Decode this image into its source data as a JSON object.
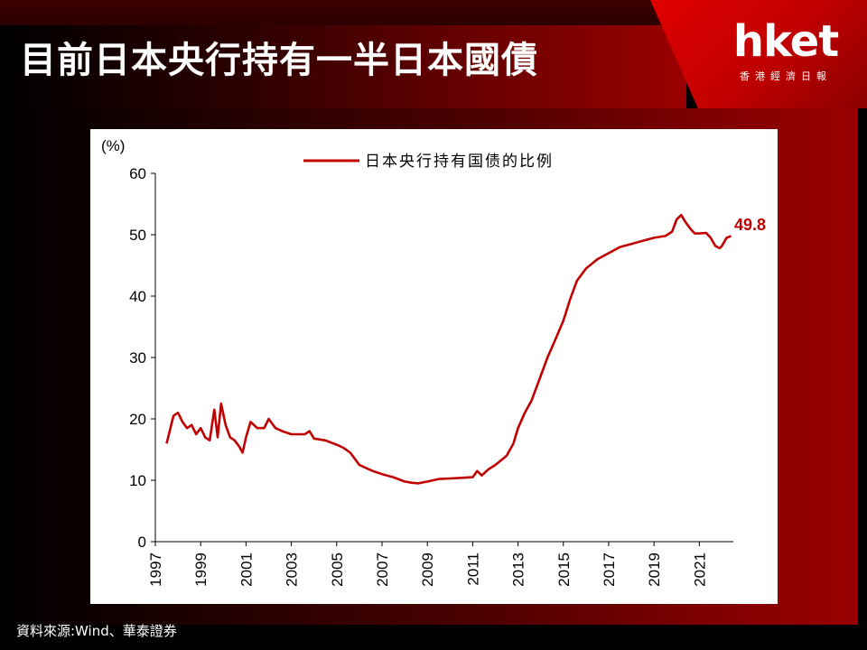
{
  "slide": {
    "title": "目前日本央行持有一半日本國債",
    "logo": "hket",
    "logo_sub": "香港經濟日報",
    "source": "資料來源:Wind、華泰證券"
  },
  "colors": {
    "series": "#c00000",
    "accent": "#e00000",
    "title_text": "#ffffff"
  },
  "chart_data": {
    "type": "line",
    "ylabel": "(%)",
    "ylim": [
      0,
      60
    ],
    "yticks": [
      "0",
      "10",
      "20",
      "30",
      "40",
      "50",
      "60"
    ],
    "xlim": [
      1997,
      2022.5
    ],
    "xticks": [
      "1997",
      "1999",
      "2001",
      "2003",
      "2005",
      "2007",
      "2009",
      "2011",
      "2013",
      "2015",
      "2017",
      "2019",
      "2021"
    ],
    "grid": false,
    "legend": "top-center",
    "end_label": "49.8",
    "series": [
      {
        "name": "日本央行持有国债的比例",
        "points": [
          [
            1997.5,
            16
          ],
          [
            1997.8,
            20.5
          ],
          [
            1998.0,
            21
          ],
          [
            1998.2,
            19.5
          ],
          [
            1998.4,
            18.5
          ],
          [
            1998.6,
            19
          ],
          [
            1998.8,
            17.5
          ],
          [
            1999.0,
            18.5
          ],
          [
            1999.2,
            17
          ],
          [
            1999.4,
            16.5
          ],
          [
            1999.6,
            21.5
          ],
          [
            1999.75,
            17
          ],
          [
            1999.9,
            22.5
          ],
          [
            2000.1,
            19
          ],
          [
            2000.3,
            17
          ],
          [
            2000.5,
            16.5
          ],
          [
            2000.7,
            15.5
          ],
          [
            2000.85,
            14.5
          ],
          [
            2001.0,
            17
          ],
          [
            2001.2,
            19.5
          ],
          [
            2001.5,
            18.5
          ],
          [
            2001.8,
            18.5
          ],
          [
            2002.0,
            20
          ],
          [
            2002.3,
            18.5
          ],
          [
            2002.6,
            18
          ],
          [
            2003.0,
            17.5
          ],
          [
            2003.3,
            17.5
          ],
          [
            2003.6,
            17.5
          ],
          [
            2003.8,
            18
          ],
          [
            2004.0,
            16.8
          ],
          [
            2004.5,
            16.5
          ],
          [
            2005.0,
            15.8
          ],
          [
            2005.3,
            15.3
          ],
          [
            2005.6,
            14.5
          ],
          [
            2005.8,
            13.5
          ],
          [
            2006.0,
            12.5
          ],
          [
            2006.3,
            12
          ],
          [
            2006.6,
            11.5
          ],
          [
            2007.0,
            11
          ],
          [
            2007.5,
            10.5
          ],
          [
            2008.0,
            9.8
          ],
          [
            2008.3,
            9.6
          ],
          [
            2008.6,
            9.5
          ],
          [
            2009.0,
            9.8
          ],
          [
            2009.5,
            10.2
          ],
          [
            2010.0,
            10.3
          ],
          [
            2010.5,
            10.4
          ],
          [
            2011.0,
            10.5
          ],
          [
            2011.2,
            11.5
          ],
          [
            2011.4,
            10.8
          ],
          [
            2011.7,
            11.8
          ],
          [
            2012.0,
            12.5
          ],
          [
            2012.5,
            14
          ],
          [
            2012.8,
            16
          ],
          [
            2013.0,
            18.5
          ],
          [
            2013.3,
            21
          ],
          [
            2013.6,
            23
          ],
          [
            2014.0,
            27
          ],
          [
            2014.3,
            30
          ],
          [
            2014.6,
            32.5
          ],
          [
            2015.0,
            36
          ],
          [
            2015.3,
            39.5
          ],
          [
            2015.6,
            42.5
          ],
          [
            2016.0,
            44.5
          ],
          [
            2016.5,
            46
          ],
          [
            2017.0,
            47
          ],
          [
            2017.5,
            48
          ],
          [
            2018.0,
            48.5
          ],
          [
            2018.5,
            49
          ],
          [
            2019.0,
            49.5
          ],
          [
            2019.5,
            49.8
          ],
          [
            2019.8,
            50.5
          ],
          [
            2020.0,
            52.5
          ],
          [
            2020.2,
            53.2
          ],
          [
            2020.4,
            52
          ],
          [
            2020.6,
            51
          ],
          [
            2020.8,
            50.2
          ],
          [
            2021.0,
            50.2
          ],
          [
            2021.3,
            50.3
          ],
          [
            2021.5,
            49.5
          ],
          [
            2021.7,
            48.2
          ],
          [
            2021.9,
            47.8
          ],
          [
            2022.0,
            48.2
          ],
          [
            2022.2,
            49.5
          ],
          [
            2022.4,
            49.8
          ]
        ]
      }
    ]
  }
}
